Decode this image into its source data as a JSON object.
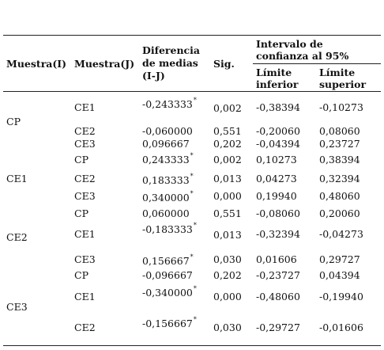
{
  "headers": {
    "muestra_i": "Muestra(I)",
    "muestra_j": "Muestra(J)",
    "diferencia": [
      "Diferencia",
      "de medias",
      "(I-J)"
    ],
    "sig": "Sig.",
    "intervalo": [
      "Intervalo de",
      "confianza al 95%"
    ],
    "limite_inferior": [
      "Límite",
      "inferior"
    ],
    "limite_superior": [
      "Límite",
      "superior"
    ]
  },
  "groups": [
    {
      "label": "CP",
      "rows": [
        {
          "j": "CE1",
          "diff": "-0,243333",
          "star": "*",
          "sig": "0,002",
          "li": "-0,38394",
          "ls": "-0,10273"
        },
        {
          "j": "CE2",
          "diff": "-0,060000",
          "star": "",
          "sig": "0,551",
          "li": "-0,20060",
          "ls": "0,08060"
        },
        {
          "j": "CE3",
          "diff": "0,096667",
          "star": "",
          "sig": "0,202",
          "li": "-0,04394",
          "ls": "0,23727"
        }
      ]
    },
    {
      "label": "CE1",
      "rows": [
        {
          "j": "CP",
          "diff": "0,243333",
          "star": "*",
          "sig": "0,002",
          "li": "0,10273",
          "ls": "0,38394"
        },
        {
          "j": "CE2",
          "diff": "0,183333",
          "star": "*",
          "sig": "0,013",
          "li": "0,04273",
          "ls": "0,32394"
        },
        {
          "j": "CE3",
          "diff": "0,340000",
          "star": "*",
          "sig": "0,000",
          "li": "0,19940",
          "ls": "0,48060"
        }
      ]
    },
    {
      "label": "CE2",
      "rows": [
        {
          "j": "CP",
          "diff": "0,060000",
          "star": "",
          "sig": "0,551",
          "li": "-0,08060",
          "ls": "0,20060"
        },
        {
          "j": "CE1",
          "diff": "-0,183333",
          "star": "*",
          "sig": "0,013",
          "li": "-0,32394",
          "ls": "-0,04273"
        },
        {
          "j": "CE3",
          "diff": "0,156667",
          "star": "*",
          "sig": "0,030",
          "li": "0,01606",
          "ls": "0,29727"
        }
      ]
    },
    {
      "label": "CE3",
      "rows": [
        {
          "j": "CP",
          "diff": "-0,096667",
          "star": "",
          "sig": "0,202",
          "li": "-0,23727",
          "ls": "0,04394"
        },
        {
          "j": "CE1",
          "diff": "-0,340000",
          "star": "*",
          "sig": "0,000",
          "li": "-0,48060",
          "ls": "-0,19940"
        },
        {
          "j": "CE2",
          "diff": "-0,156667",
          "star": "*",
          "sig": "0,030",
          "li": "-0,29727",
          "ls": "-0,01606"
        }
      ]
    }
  ]
}
